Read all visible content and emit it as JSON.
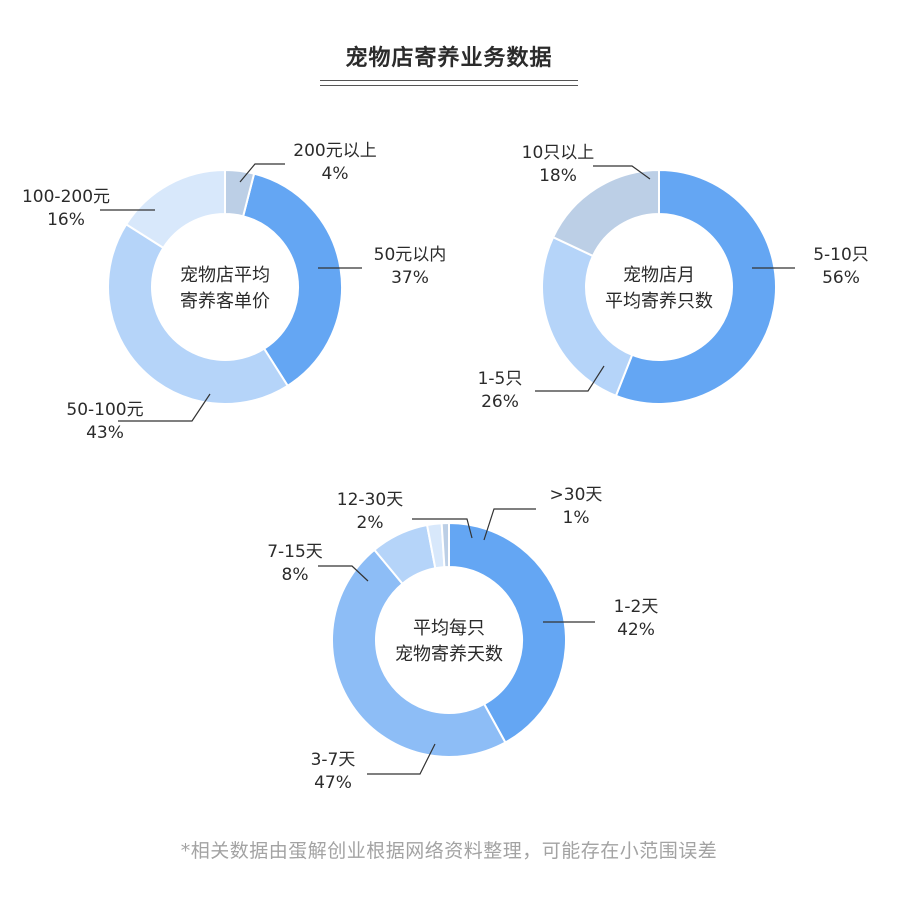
{
  "title": "宠物店寄养业务数据",
  "footnote": "*相关数据由蛋解创业根据网络资料整理，可能存在小范围误差",
  "colors": {
    "darkest": "#64a6f3",
    "dark": "#8dbdf6",
    "medium": "#b5d4f9",
    "light": "#d8e8fb",
    "gray": "#bccfe6"
  },
  "chart_data": [
    {
      "type": "pie",
      "center_label": [
        "宠物店平均",
        "寄养客单价"
      ],
      "slices": [
        {
          "label": "50元以内",
          "percent_label": "37%",
          "value": 37,
          "color": "#64a6f3"
        },
        {
          "label": "50-100元",
          "percent_label": "43%",
          "value": 43,
          "color": "#b5d4f9"
        },
        {
          "label": "100-200元",
          "percent_label": "16%",
          "value": 16,
          "color": "#d8e8fb"
        },
        {
          "label": "200元以上",
          "percent_label": "4%",
          "value": 4,
          "color": "#bccfe6"
        }
      ]
    },
    {
      "type": "pie",
      "center_label": [
        "宠物店月",
        "平均寄养只数"
      ],
      "slices": [
        {
          "label": "5-10只",
          "percent_label": "56%",
          "value": 56,
          "color": "#64a6f3"
        },
        {
          "label": "1-5只",
          "percent_label": "26%",
          "value": 26,
          "color": "#b5d4f9"
        },
        {
          "label": "10只以上",
          "percent_label": "18%",
          "value": 18,
          "color": "#bccfe6"
        }
      ]
    },
    {
      "type": "pie",
      "center_label": [
        "平均每只",
        "宠物寄养天数"
      ],
      "slices": [
        {
          "label": "1-2天",
          "percent_label": "42%",
          "value": 42,
          "color": "#64a6f3"
        },
        {
          "label": "3-7天",
          "percent_label": "47%",
          "value": 47,
          "color": "#8dbdf6"
        },
        {
          "label": "7-15天",
          "percent_label": "8%",
          "value": 8,
          "color": "#b5d4f9"
        },
        {
          "label": "12-30天",
          "percent_label": "2%",
          "value": 2,
          "color": "#d8e8fb"
        },
        {
          "label": ">30天",
          "percent_label": "1%",
          "value": 1,
          "color": "#bccfe6"
        }
      ]
    }
  ]
}
